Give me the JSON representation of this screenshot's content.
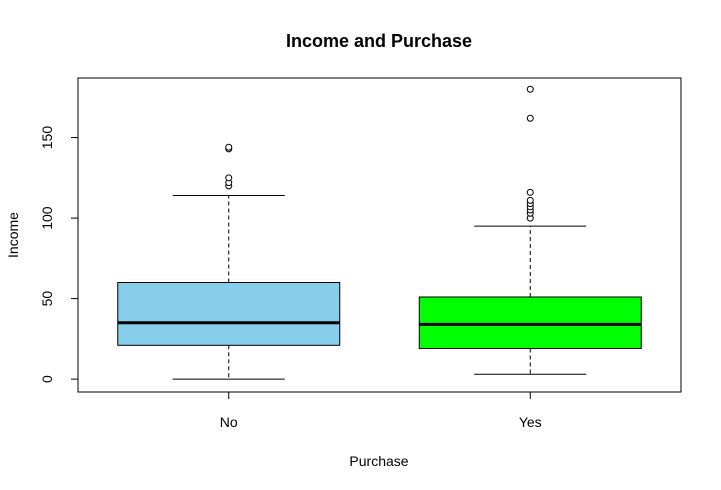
{
  "chart_data": {
    "type": "boxplot",
    "title": "Income and Purchase",
    "xlabel": "Purchase",
    "ylabel": "Income",
    "ylim": [
      -8,
      187
    ],
    "yticks": [
      0,
      50,
      100,
      150
    ],
    "categories": [
      "No",
      "Yes"
    ],
    "boxes": [
      {
        "label": "No",
        "color": "#87CEEB",
        "min": 0,
        "q1": 21,
        "median": 35,
        "q3": 60,
        "max": 114,
        "outliers": [
          120,
          122,
          125,
          143,
          144
        ]
      },
      {
        "label": "Yes",
        "color": "#00FF00",
        "min": 3,
        "q1": 19,
        "median": 34,
        "q3": 51,
        "max": 95,
        "outliers": [
          100,
          103,
          105,
          107,
          109,
          111,
          116,
          162,
          180
        ]
      }
    ]
  }
}
